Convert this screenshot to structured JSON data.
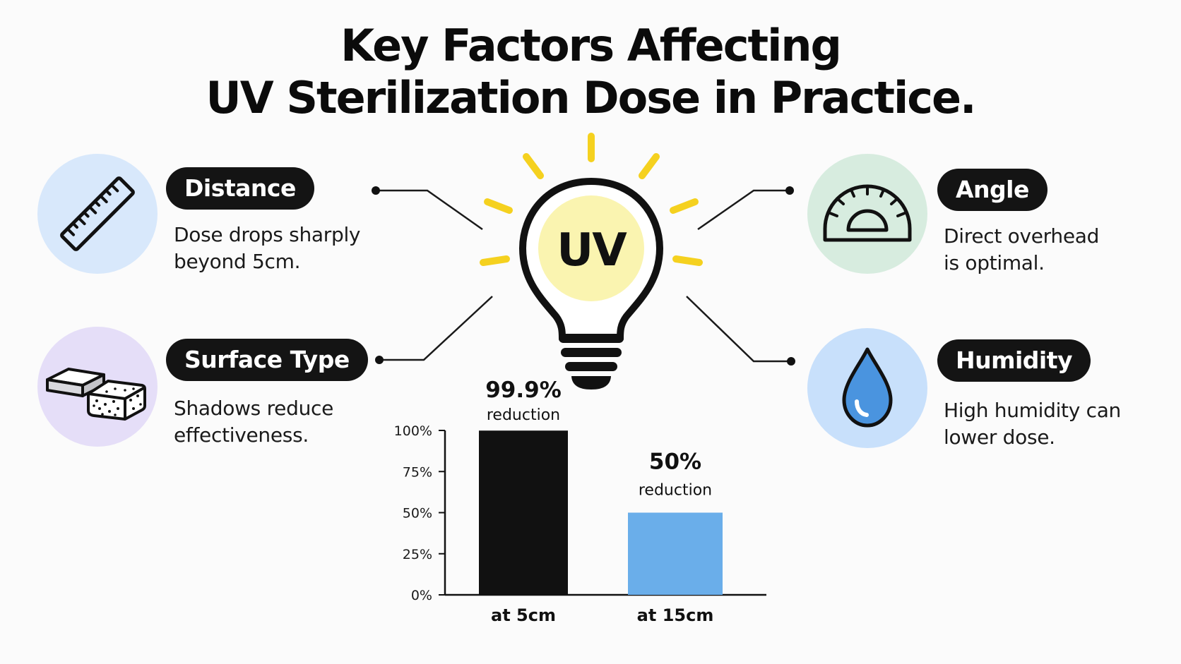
{
  "title": {
    "line1": "Key Factors Affecting",
    "line2": "UV Sterilization Dose in Practice."
  },
  "center": {
    "bulb_label": "UV",
    "bulb_icon": "lightbulb-icon"
  },
  "factors": {
    "distance": {
      "label": "Distance",
      "desc_line1": "Dose drops sharply",
      "desc_line2": "beyond 5cm.",
      "icon": "ruler-icon",
      "circle_color": "#d8e8fb"
    },
    "surface": {
      "label": "Surface Type",
      "desc_line1": "Shadows reduce",
      "desc_line2": "effectiveness.",
      "icon": "sponge-icon",
      "circle_color": "#e5def8"
    },
    "angle": {
      "label": "Angle",
      "desc_line1": "Direct overhead",
      "desc_line2": "is optimal.",
      "icon": "protractor-icon",
      "circle_color": "#d7ecdf"
    },
    "humidity": {
      "label": "Humidity",
      "desc_line1": "High humidity can",
      "desc_line2": "lower dose.",
      "icon": "water-drop-icon",
      "circle_color": "#c8e0fb"
    }
  },
  "colors": {
    "pill_bg": "#141414",
    "bulb_fill": "#faf4b0",
    "ray": "#f5d11f",
    "bar_5cm": "#111111",
    "bar_15cm": "#6aaeea"
  },
  "chart_data": {
    "type": "bar",
    "categories": [
      "at 5cm",
      "at 15cm"
    ],
    "values": [
      99.9,
      50
    ],
    "value_labels": [
      "99.9%",
      "50%"
    ],
    "value_sublabel": "reduction",
    "y_ticks": [
      "0%",
      "25%",
      "50%",
      "75%",
      "100%"
    ],
    "ylim": [
      0,
      100
    ],
    "title": "",
    "xlabel": "",
    "ylabel": "",
    "grid": false
  }
}
